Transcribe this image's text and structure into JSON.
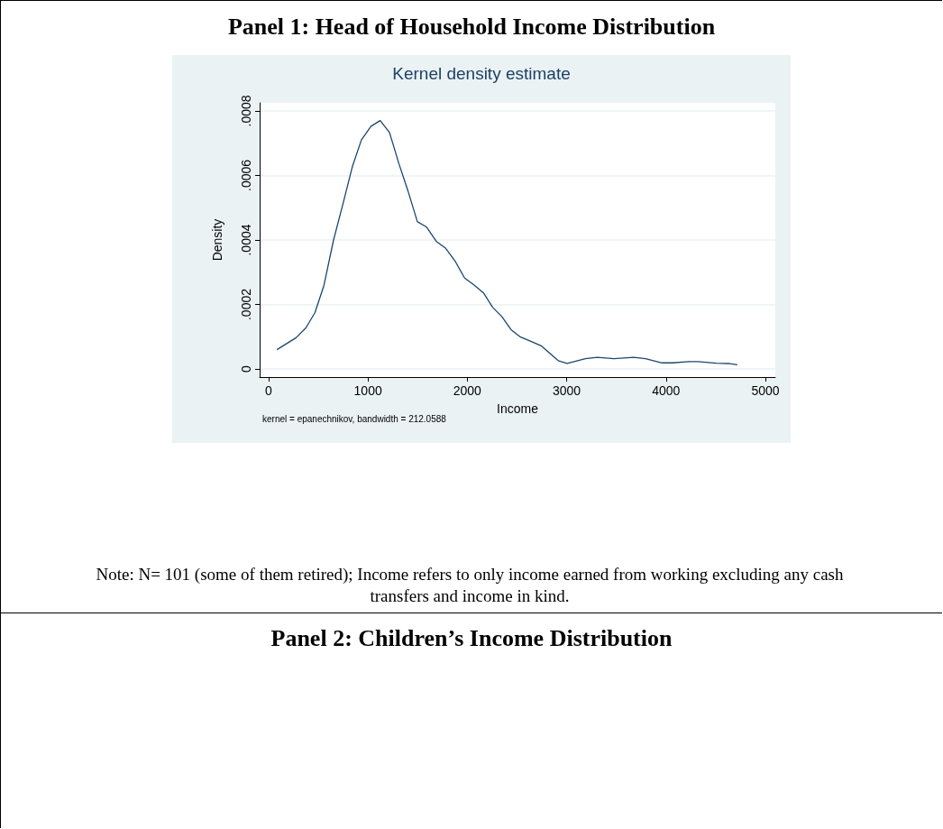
{
  "chart_data": {
    "type": "line",
    "title": "Panel 1: Head of Household Income Distribution",
    "subtitle": "Kernel density estimate",
    "xlabel": "Income",
    "ylabel": "Density",
    "annotations": [
      "kernel = epanechnikov, bandwidth = 212.0588",
      "Note: N= 101 (some of them retired); Income refers to only income earned from working excluding any cash transfers and income in kind.",
      "Panel 2: Children’s Income Distribution"
    ],
    "x": [
      84,
      277,
      377,
      467,
      557,
      654,
      753,
      843,
      934,
      1030,
      1123,
      1217,
      1310,
      1401,
      1497,
      1590,
      1687,
      1783,
      1880,
      1973,
      2066,
      2163,
      2253,
      2349,
      2440,
      2536,
      2645,
      2748,
      2915,
      3006,
      3188,
      3309,
      3476,
      3673,
      3794,
      3961,
      4067,
      4233,
      4324,
      4506,
      4627,
      4718
    ],
    "series": [
      {
        "color": "#1a476f",
        "values": [
          6e-05,
          9.7e-05,
          0.000128,
          0.000175,
          0.000259,
          0.0004,
          0.000517,
          0.000627,
          0.00071,
          0.000752,
          0.00077,
          0.000733,
          0.000638,
          0.000554,
          0.000457,
          0.00044,
          0.000396,
          0.000374,
          0.000333,
          0.000282,
          0.000261,
          0.000236,
          0.000192,
          0.000162,
          0.000122,
          9.9e-05,
          8.5e-05,
          7.1e-05,
          2.6e-05,
          1.7e-05,
          3.2e-05,
          3.6e-05,
          3.2e-05,
          3.6e-05,
          3.2e-05,
          1.9e-05,
          1.9e-05,
          2.3e-05,
          2.3e-05,
          1.8e-05,
          1.7e-05,
          1.3e-05
        ]
      }
    ],
    "xlim": [
      -90,
      5100
    ],
    "xticks": [
      0,
      1000,
      2000,
      3000,
      4000,
      5000
    ],
    "ylim": [
      -2.5e-05,
      0.000825
    ],
    "yticks": [
      {
        "value": 0,
        "label": "0"
      },
      {
        "value": 0.0002,
        "label": ".0002"
      },
      {
        "value": 0.0004,
        "label": ".0004"
      },
      {
        "value": 0.0006,
        "label": ".0006"
      },
      {
        "value": 0.0008,
        "label": ".0008"
      }
    ],
    "grid": "y",
    "marker": "none",
    "line_style": "solid"
  }
}
